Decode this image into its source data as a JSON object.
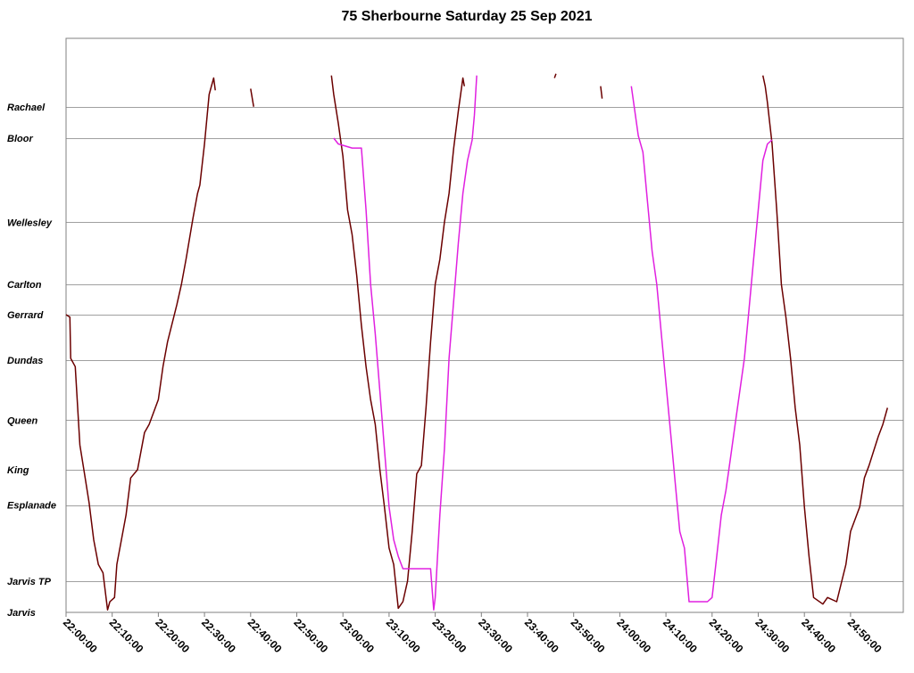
{
  "chart_data": {
    "type": "line",
    "title": "75 Sherbourne Saturday 25 Sep 2021",
    "xlabel": "",
    "ylabel": "",
    "xlim": [
      "22:00:00",
      "24:58:00"
    ],
    "x_ticks": [
      "22:00:00",
      "22:10:00",
      "22:20:00",
      "22:30:00",
      "22:40:00",
      "22:50:00",
      "23:00:00",
      "23:10:00",
      "23:20:00",
      "23:30:00",
      "23:40:00",
      "23:50:00",
      "24:00:00",
      "24:10:00",
      "24:20:00",
      "24:30:00",
      "24:40:00",
      "24:50:00"
    ],
    "stops": [
      {
        "name": "Rachael",
        "dist": 4.65
      },
      {
        "name": "Bloor",
        "dist": 4.27
      },
      {
        "name": "Wellesley",
        "dist": 3.25
      },
      {
        "name": "Carlton",
        "dist": 2.5
      },
      {
        "name": "Gerrard",
        "dist": 2.13
      },
      {
        "name": "Dundas",
        "dist": 1.58
      },
      {
        "name": "Queen",
        "dist": 0.85
      },
      {
        "name": "King",
        "dist": 0.25
      },
      {
        "name": "Esplanade",
        "dist": -0.18
      },
      {
        "name": "Jarvis TP",
        "dist": -1.1
      },
      {
        "name": "Jarvis",
        "dist": -1.48
      }
    ],
    "grid": true,
    "series": [
      {
        "color": "#6b0000",
        "segments": [
          [
            [
              "22:00:00",
              2.13
            ],
            [
              "22:00:50",
              2.1
            ],
            [
              "22:01:00",
              1.6
            ],
            [
              "22:02:00",
              1.5
            ],
            [
              "22:03:00",
              0.55
            ],
            [
              "22:04:00",
              0.2
            ],
            [
              "22:05:00",
              -0.15
            ],
            [
              "22:06:00",
              -0.6
            ],
            [
              "22:07:00",
              -0.9
            ],
            [
              "22:08:00",
              -1.0
            ],
            [
              "22:09:00",
              -1.45
            ],
            [
              "22:09:30",
              -1.35
            ],
            [
              "22:10:30",
              -1.3
            ],
            [
              "22:11:00",
              -0.9
            ],
            [
              "22:13:00",
              -0.3
            ],
            [
              "22:14:00",
              0.15
            ],
            [
              "22:15:30",
              0.25
            ],
            [
              "22:17:00",
              0.7
            ],
            [
              "22:18:00",
              0.8
            ],
            [
              "22:20:00",
              1.1
            ],
            [
              "22:21:00",
              1.5
            ],
            [
              "22:22:00",
              1.8
            ],
            [
              "22:24:00",
              2.25
            ],
            [
              "22:25:00",
              2.5
            ],
            [
              "22:26:00",
              2.8
            ],
            [
              "22:27:30",
              3.3
            ],
            [
              "22:28:30",
              3.6
            ],
            [
              "22:29:00",
              3.7
            ],
            [
              "22:30:00",
              4.2
            ],
            [
              "22:31:00",
              4.8
            ],
            [
              "22:32:00",
              5.0
            ],
            [
              "22:32:20",
              4.85
            ]
          ],
          [
            [
              "22:40:00",
              4.87
            ],
            [
              "22:40:40",
              4.65
            ]
          ],
          [
            [
              "22:57:30",
              5.03
            ],
            [
              "22:58:00",
              4.8
            ],
            [
              "22:59:00",
              4.45
            ],
            [
              "23:00:00",
              4.05
            ],
            [
              "23:01:00",
              3.4
            ],
            [
              "23:02:00",
              3.1
            ],
            [
              "23:03:00",
              2.6
            ],
            [
              "23:04:00",
              2.0
            ],
            [
              "23:05:00",
              1.5
            ],
            [
              "23:06:00",
              1.1
            ],
            [
              "23:07:00",
              0.8
            ],
            [
              "23:08:00",
              0.25
            ],
            [
              "23:09:00",
              -0.2
            ],
            [
              "23:10:00",
              -0.7
            ],
            [
              "23:11:00",
              -0.9
            ],
            [
              "23:12:00",
              -1.43
            ],
            [
              "23:13:00",
              -1.35
            ],
            [
              "23:14:00",
              -1.1
            ],
            [
              "23:15:00",
              -0.5
            ],
            [
              "23:16:00",
              0.2
            ],
            [
              "23:17:00",
              0.3
            ],
            [
              "23:18:00",
              1.0
            ],
            [
              "23:19:00",
              1.8
            ],
            [
              "23:20:00",
              2.5
            ],
            [
              "23:21:00",
              2.8
            ],
            [
              "23:22:00",
              3.25
            ],
            [
              "23:23:00",
              3.6
            ],
            [
              "23:24:00",
              4.15
            ],
            [
              "23:25:00",
              4.6
            ],
            [
              "23:26:00",
              5.0
            ],
            [
              "23:26:20",
              4.9
            ]
          ],
          [
            [
              "23:45:50",
              5.0
            ],
            [
              "23:46:10",
              5.05
            ]
          ],
          [
            [
              "23:55:50",
              4.9
            ],
            [
              "23:56:10",
              4.75
            ]
          ],
          [
            [
              "24:31:00",
              5.03
            ],
            [
              "24:31:30",
              4.9
            ],
            [
              "24:32:00",
              4.7
            ],
            [
              "24:33:00",
              4.2
            ],
            [
              "24:34:00",
              3.4
            ],
            [
              "24:35:00",
              2.5
            ],
            [
              "24:36:00",
              2.1
            ],
            [
              "24:37:00",
              1.6
            ],
            [
              "24:38:00",
              1.0
            ],
            [
              "24:39:00",
              0.55
            ],
            [
              "24:40:00",
              -0.2
            ],
            [
              "24:41:00",
              -0.8
            ],
            [
              "24:42:00",
              -1.3
            ],
            [
              "24:44:00",
              -1.38
            ],
            [
              "24:45:00",
              -1.3
            ],
            [
              "24:47:00",
              -1.35
            ],
            [
              "24:49:00",
              -0.9
            ],
            [
              "24:50:00",
              -0.5
            ],
            [
              "24:52:00",
              -0.2
            ],
            [
              "24:53:00",
              0.15
            ],
            [
              "24:54:00",
              0.3
            ],
            [
              "24:56:00",
              0.65
            ],
            [
              "24:57:00",
              0.8
            ],
            [
              "24:58:00",
              1.0
            ]
          ]
        ]
      },
      {
        "color": "#e020e0",
        "segments": [
          [
            [
              "22:58:00",
              4.27
            ],
            [
              "22:59:00",
              4.2
            ],
            [
              "23:02:00",
              4.15
            ],
            [
              "23:04:00",
              4.15
            ],
            [
              "23:05:00",
              3.4
            ],
            [
              "23:06:00",
              2.5
            ],
            [
              "23:07:00",
              1.9
            ],
            [
              "23:08:00",
              1.2
            ],
            [
              "23:09:00",
              0.5
            ],
            [
              "23:10:00",
              -0.2
            ],
            [
              "23:11:00",
              -0.6
            ],
            [
              "23:12:00",
              -0.8
            ],
            [
              "23:13:00",
              -0.95
            ],
            [
              "23:17:00",
              -0.95
            ],
            [
              "23:19:00",
              -0.95
            ],
            [
              "23:19:40",
              -1.45
            ],
            [
              "23:20:00",
              -1.3
            ],
            [
              "23:21:00",
              -0.3
            ],
            [
              "23:22:00",
              0.5
            ],
            [
              "23:23:00",
              1.6
            ],
            [
              "23:24:00",
              2.3
            ],
            [
              "23:25:00",
              3.0
            ],
            [
              "23:26:00",
              3.6
            ],
            [
              "23:27:00",
              4.0
            ],
            [
              "23:28:00",
              4.25
            ],
            [
              "23:28:30",
              4.55
            ],
            [
              "23:29:00",
              5.03
            ]
          ],
          [
            [
              "24:02:30",
              4.9
            ],
            [
              "24:04:00",
              4.3
            ],
            [
              "24:05:00",
              4.1
            ],
            [
              "24:06:00",
              3.5
            ],
            [
              "24:07:00",
              2.9
            ],
            [
              "24:08:00",
              2.5
            ],
            [
              "24:09:00",
              1.9
            ],
            [
              "24:10:00",
              1.3
            ],
            [
              "24:11:00",
              0.7
            ],
            [
              "24:12:00",
              0.1
            ],
            [
              "24:13:00",
              -0.5
            ],
            [
              "24:14:00",
              -0.7
            ],
            [
              "24:15:00",
              -1.35
            ],
            [
              "24:17:00",
              -1.35
            ],
            [
              "24:19:00",
              -1.35
            ],
            [
              "24:20:00",
              -1.3
            ],
            [
              "24:21:00",
              -0.8
            ],
            [
              "24:22:00",
              -0.3
            ],
            [
              "24:23:00",
              0.0
            ],
            [
              "24:24:00",
              0.4
            ],
            [
              "24:25:00",
              0.8
            ],
            [
              "24:26:00",
              1.2
            ],
            [
              "24:27:00",
              1.6
            ],
            [
              "24:28:00",
              2.2
            ],
            [
              "24:29:00",
              2.8
            ],
            [
              "24:30:00",
              3.4
            ],
            [
              "24:31:00",
              4.0
            ],
            [
              "24:32:00",
              4.2
            ],
            [
              "24:33:00",
              4.25
            ]
          ]
        ]
      }
    ]
  }
}
